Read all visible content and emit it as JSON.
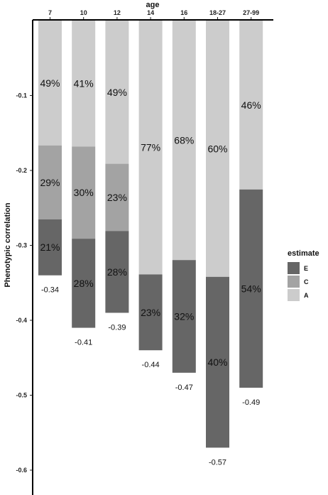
{
  "chart_data": {
    "type": "bar",
    "stacked": true,
    "orientation": "vertical-hanging",
    "x_axis_position": "top",
    "xlabel": "age",
    "ylabel": "Phenotypic correlation",
    "ylim": [
      -0.63,
      0
    ],
    "yticks": [
      -0.1,
      -0.2,
      -0.3,
      -0.4,
      -0.5,
      -0.6
    ],
    "ytick_labels": [
      "-0.1",
      "-0.2",
      "-0.3",
      "-0.4",
      "-0.5",
      "-0.6"
    ],
    "categories": [
      "7",
      "10",
      "12",
      "14",
      "16",
      "18-27",
      "27-99"
    ],
    "totals": [
      -0.34,
      -0.41,
      -0.39,
      -0.44,
      -0.47,
      -0.57,
      -0.49
    ],
    "total_labels": [
      "-0.34",
      "-0.41",
      "-0.39",
      "-0.44",
      "-0.47",
      "-0.57",
      "-0.49"
    ],
    "series": [
      {
        "name": "A",
        "color": "#cccccc",
        "percent_values": [
          49,
          41,
          49,
          77,
          68,
          60,
          46
        ],
        "labels": [
          "49%",
          "41%",
          "49%",
          "77%",
          "68%",
          "60%",
          "46%"
        ]
      },
      {
        "name": "C",
        "color": "#a3a3a3",
        "percent_values": [
          29,
          30,
          23,
          0,
          0,
          0,
          0
        ],
        "labels": [
          "29%",
          "30%",
          "23%",
          "",
          "",
          "",
          ""
        ]
      },
      {
        "name": "E",
        "color": "#666666",
        "percent_values": [
          21,
          28,
          28,
          23,
          32,
          40,
          54
        ],
        "labels": [
          "21%",
          "28%",
          "28%",
          "23%",
          "32%",
          "40%",
          "54%"
        ]
      }
    ],
    "legend": {
      "title": "estimate",
      "position": "right",
      "order": [
        "E",
        "C",
        "A"
      ]
    },
    "grid": false
  }
}
